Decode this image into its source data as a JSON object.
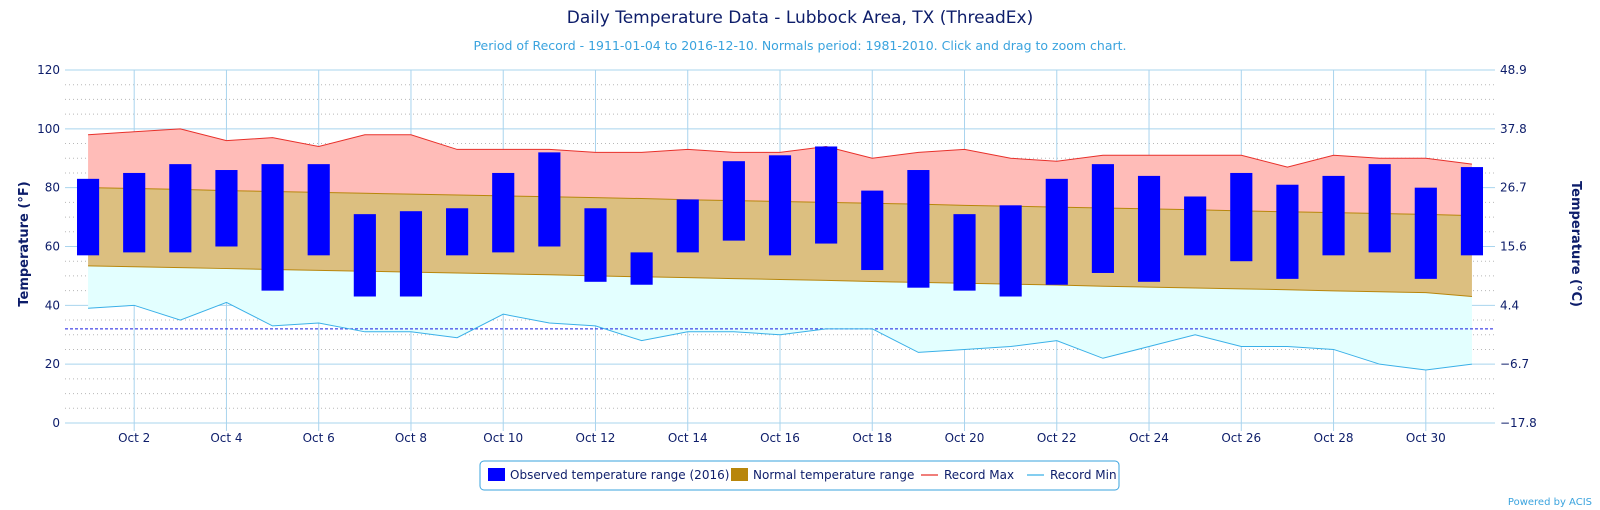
{
  "chart_data": {
    "type": "range-bar",
    "title": "Daily Temperature Data - Lubbock Area, TX (ThreadEx)",
    "subtitle": "Period of Record - 1911-01-04 to 2016-12-10. Normals period: 1981-2010. Click and drag to zoom chart.",
    "ylabel_left": "Temperature (°F)",
    "ylabel_right": "Temperature (°C)",
    "ylim": [
      0,
      120
    ],
    "yticks_left": [
      "0",
      "20",
      "40",
      "60",
      "80",
      "100",
      "120"
    ],
    "yticks_right": [
      "−17.8",
      "−6.7",
      "4.4",
      "15.6",
      "26.7",
      "37.8",
      "48.9"
    ],
    "days": [
      1,
      2,
      3,
      4,
      5,
      6,
      7,
      8,
      9,
      10,
      11,
      12,
      13,
      14,
      15,
      16,
      17,
      18,
      19,
      20,
      21,
      22,
      23,
      24,
      25,
      26,
      27,
      28,
      29,
      30,
      31
    ],
    "x_tick_labels": [
      "Oct 2",
      "Oct 4",
      "Oct 6",
      "Oct 8",
      "Oct 10",
      "Oct 12",
      "Oct 14",
      "Oct 16",
      "Oct 18",
      "Oct 20",
      "Oct 22",
      "Oct 24",
      "Oct 26",
      "Oct 28",
      "Oct 30"
    ],
    "x_tick_days": [
      2,
      4,
      6,
      8,
      10,
      12,
      14,
      16,
      18,
      20,
      22,
      24,
      26,
      28,
      30
    ],
    "freezing_line": 32,
    "observed": {
      "name": "Observed temperature range (2016)",
      "low": [
        57,
        58,
        58,
        60,
        45,
        57,
        43,
        43,
        57,
        58,
        60,
        48,
        47,
        58,
        62,
        57,
        61,
        52,
        46,
        45,
        43,
        47,
        51,
        48,
        57,
        55,
        49,
        57,
        58,
        49,
        57
      ],
      "high": [
        83,
        85,
        88,
        86,
        88,
        88,
        71,
        72,
        73,
        85,
        92,
        73,
        58,
        76,
        89,
        91,
        94,
        79,
        86,
        71,
        74,
        83,
        88,
        84,
        77,
        85,
        81,
        84,
        88,
        80,
        87
      ]
    },
    "normal": {
      "name": "Normal temperature range",
      "low": [
        53.4,
        53.1,
        52.8,
        52.5,
        52.2,
        51.9,
        51.6,
        51.3,
        51.0,
        50.7,
        50.4,
        50.0,
        49.7,
        49.4,
        49.1,
        48.8,
        48.5,
        48.1,
        47.8,
        47.5,
        47.2,
        46.9,
        46.5,
        46.2,
        45.9,
        45.6,
        45.3,
        44.9,
        44.6,
        44.3,
        43.0
      ],
      "high": [
        80.0,
        79.7,
        79.4,
        79.0,
        78.7,
        78.4,
        78.1,
        77.8,
        77.5,
        77.2,
        76.9,
        76.6,
        76.3,
        75.9,
        75.6,
        75.3,
        75.0,
        74.7,
        74.4,
        74.0,
        73.7,
        73.4,
        73.1,
        72.8,
        72.5,
        72.1,
        71.8,
        71.5,
        71.2,
        70.9,
        70.5
      ]
    },
    "record_max": {
      "name": "Record Max",
      "values": [
        98,
        99,
        100,
        96,
        97,
        94,
        98,
        98,
        93,
        93,
        93,
        92,
        92,
        93,
        92,
        92,
        94,
        90,
        92,
        93,
        90,
        89,
        91,
        91,
        91,
        91,
        87,
        91,
        90,
        90,
        88
      ]
    },
    "record_min": {
      "name": "Record Min",
      "values": [
        39,
        40,
        35,
        41,
        33,
        34,
        31,
        31,
        29,
        37,
        34,
        33,
        28,
        31,
        31,
        30,
        32,
        32,
        24,
        25,
        26,
        28,
        22,
        26,
        30,
        26,
        26,
        25,
        20,
        18,
        20
      ]
    },
    "colors": {
      "observed": "#0000ff",
      "normal": "#b8860b",
      "normal_fill": "#dcbf80",
      "record_max": "#e8302a",
      "record_max_fill": "#ffbcb8",
      "record_min": "#3ab0e8",
      "record_min_fill": "#e3ffff",
      "grid": "#a9d4ee",
      "text": "#0d1d6a"
    }
  },
  "credit": "Powered by ACIS"
}
